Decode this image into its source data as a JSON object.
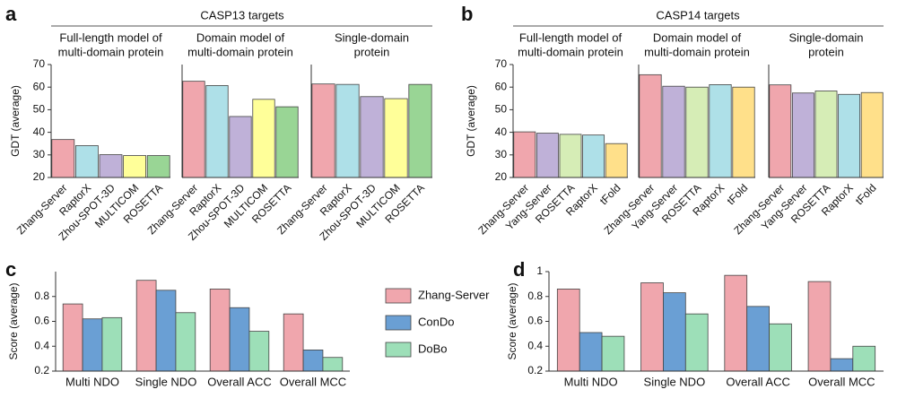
{
  "panels": [
    {
      "letter": "a",
      "title": "CASP13 targets"
    },
    {
      "letter": "b",
      "title": "CASP14 targets"
    },
    {
      "letter": "c"
    },
    {
      "letter": "d"
    }
  ],
  "chart_data": [
    {
      "type": "bar",
      "title": [
        "Full-length model of",
        "multi-domain protein"
      ],
      "y_label": "GDT (average)",
      "categories": [
        "Zhang-Server",
        "RaptorX",
        "Zhou-SPOT-3D",
        "MULTICOM",
        "ROSETTA"
      ],
      "values": [
        36.8,
        34.1,
        30.1,
        29.7,
        29.7
      ],
      "colors": [
        "#f0a6ad",
        "#aee0e8",
        "#bfb1d8",
        "#ffff99",
        "#99d595"
      ],
      "ylim": [
        20,
        70
      ],
      "yticks": [
        20,
        30,
        40,
        50,
        60,
        70
      ]
    },
    {
      "type": "bar",
      "title": [
        "Domain model of",
        "multi-domain protein"
      ],
      "categories": [
        "Zhang-Server",
        "RaptorX",
        "Zhou-SPOT-3D",
        "MULTICOM",
        "ROSETTA"
      ],
      "values": [
        62.6,
        60.7,
        47.0,
        54.6,
        51.3
      ],
      "colors": [
        "#f0a6ad",
        "#aee0e8",
        "#bfb1d8",
        "#ffff99",
        "#99d595"
      ],
      "ylim": [
        20,
        70
      ]
    },
    {
      "type": "bar",
      "title": [
        "Single-domain",
        "protein"
      ],
      "categories": [
        "Zhang-Server",
        "RaptorX",
        "Zhou-SPOT-3D",
        "MULTICOM",
        "ROSETTA"
      ],
      "values": [
        61.4,
        61.2,
        55.8,
        54.9,
        61.2
      ],
      "colors": [
        "#f0a6ad",
        "#aee0e8",
        "#bfb1d8",
        "#ffff99",
        "#99d595"
      ],
      "ylim": [
        20,
        70
      ]
    },
    {
      "type": "bar",
      "title": [
        "Full-length model of",
        "multi-domain protein"
      ],
      "y_label": "GDT (average)",
      "categories": [
        "Zhang-Server",
        "Yang-Server",
        "ROSETTA",
        "RaptorX",
        "tFold"
      ],
      "values": [
        40.2,
        39.6,
        39.1,
        38.8,
        35.0
      ],
      "colors": [
        "#f0a6ad",
        "#bfb1d8",
        "#d6edb6",
        "#aee0e8",
        "#ffe08a"
      ],
      "ylim": [
        20,
        70
      ],
      "yticks": [
        20,
        30,
        40,
        50,
        60,
        70
      ]
    },
    {
      "type": "bar",
      "title": [
        "Domain model of",
        "multi-domain protein"
      ],
      "categories": [
        "Zhang-Server",
        "Yang-Server",
        "ROSETTA",
        "RaptorX",
        "tFold"
      ],
      "values": [
        65.5,
        60.4,
        60.0,
        61.1,
        60.0
      ],
      "colors": [
        "#f0a6ad",
        "#bfb1d8",
        "#d6edb6",
        "#aee0e8",
        "#ffe08a"
      ],
      "ylim": [
        20,
        70
      ]
    },
    {
      "type": "bar",
      "title": [
        "Single-domain",
        "protein"
      ],
      "categories": [
        "Zhang-Server",
        "Yang-Server",
        "ROSETTA",
        "RaptorX",
        "tFold"
      ],
      "values": [
        61.0,
        57.4,
        58.3,
        56.8,
        57.6
      ],
      "colors": [
        "#f0a6ad",
        "#bfb1d8",
        "#d6edb6",
        "#aee0e8",
        "#ffe08a"
      ],
      "ylim": [
        20,
        70
      ]
    },
    {
      "type": "grouped_bar",
      "y_label": "Score (average)",
      "categories": [
        "Multi NDO",
        "Single NDO",
        "Overall ACC",
        "Overall MCC"
      ],
      "series": [
        {
          "name": "Zhang-Server",
          "color": "#f0a6ad",
          "values": [
            0.74,
            0.93,
            0.86,
            0.66
          ]
        },
        {
          "name": "ConDo",
          "color": "#6a9fd4",
          "values": [
            0.62,
            0.85,
            0.71,
            0.37
          ]
        },
        {
          "name": "DoBo",
          "color": "#9ddfb8",
          "values": [
            0.63,
            0.67,
            0.52,
            0.31
          ]
        }
      ],
      "ylim": [
        0.2,
        1.0
      ],
      "yticks": [
        0.2,
        0.4,
        0.6,
        0.8
      ]
    },
    {
      "type": "grouped_bar",
      "y_label": "Score (average)",
      "categories": [
        "Multi NDO",
        "Single NDO",
        "Overall ACC",
        "Overall MCC"
      ],
      "series": [
        {
          "color": "#f0a6ad",
          "values": [
            0.86,
            0.91,
            0.97,
            0.92
          ]
        },
        {
          "color": "#6a9fd4",
          "values": [
            0.51,
            0.83,
            0.72,
            0.3
          ]
        },
        {
          "color": "#9ddfb8",
          "values": [
            0.48,
            0.66,
            0.58,
            0.4
          ]
        }
      ],
      "ylim": [
        0.2,
        1.0
      ],
      "yticks": [
        0.2,
        0.4,
        0.6,
        0.8,
        1
      ]
    }
  ]
}
